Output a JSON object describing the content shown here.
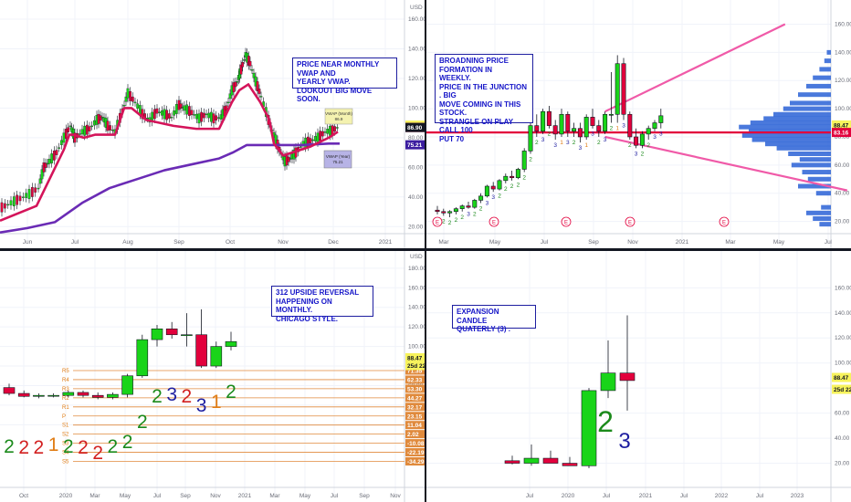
{
  "chart_data": [
    {
      "type": "candlestick",
      "panel": "top-left",
      "timeframe": "daily",
      "annotation": "PRICE NEAR MONTHLY VWAP AND\nYEARLY VWAP.\nLOOKOUT BIG MOVE SOON.",
      "currency_label": "USD",
      "x_ticks": [
        "Jun",
        "Jul",
        "Aug",
        "Sep",
        "Oct",
        "Nov",
        "Dec",
        "2021"
      ],
      "y_ticks": [
        20,
        40,
        60,
        80,
        100,
        120,
        140,
        160
      ],
      "ylim": [
        14,
        168
      ],
      "price_path": [
        [
          0,
          33
        ],
        [
          10,
          36
        ],
        [
          20,
          39
        ],
        [
          30,
          42
        ],
        [
          40,
          46
        ],
        [
          46,
          60
        ],
        [
          52,
          64
        ],
        [
          60,
          70
        ],
        [
          68,
          80
        ],
        [
          75,
          88
        ],
        [
          80,
          80
        ],
        [
          88,
          84
        ],
        [
          96,
          86
        ],
        [
          104,
          92
        ],
        [
          110,
          94
        ],
        [
          116,
          88
        ],
        [
          124,
          84
        ],
        [
          132,
          98
        ],
        [
          138,
          110
        ],
        [
          146,
          104
        ],
        [
          154,
          96
        ],
        [
          162,
          92
        ],
        [
          170,
          98
        ],
        [
          178,
          96
        ],
        [
          186,
          94
        ],
        [
          194,
          102
        ],
        [
          200,
          100
        ],
        [
          208,
          97
        ],
        [
          216,
          93
        ],
        [
          224,
          96
        ],
        [
          232,
          93
        ],
        [
          240,
          94
        ],
        [
          246,
          100
        ],
        [
          252,
          112
        ],
        [
          258,
          118
        ],
        [
          262,
          126
        ],
        [
          267,
          136
        ],
        [
          272,
          130
        ],
        [
          278,
          118
        ],
        [
          284,
          108
        ],
        [
          292,
          92
        ],
        [
          298,
          82
        ],
        [
          304,
          72
        ],
        [
          310,
          64
        ],
        [
          316,
          66
        ],
        [
          322,
          70
        ],
        [
          330,
          76
        ],
        [
          338,
          78
        ],
        [
          346,
          80
        ],
        [
          354,
          84
        ],
        [
          362,
          85
        ],
        [
          370,
          88
        ]
      ],
      "monthly_vwap": [
        [
          0,
          24
        ],
        [
          40,
          34
        ],
        [
          70,
          72
        ],
        [
          76,
          82
        ],
        [
          80,
          82
        ],
        [
          92,
          80
        ],
        [
          104,
          82
        ],
        [
          126,
          82
        ],
        [
          136,
          100
        ],
        [
          144,
          100
        ],
        [
          160,
          92
        ],
        [
          190,
          88
        ],
        [
          215,
          86
        ],
        [
          240,
          86
        ],
        [
          254,
          104
        ],
        [
          262,
          112
        ],
        [
          272,
          116
        ],
        [
          285,
          104
        ],
        [
          295,
          92
        ],
        [
          300,
          76
        ],
        [
          310,
          68
        ],
        [
          320,
          70
        ],
        [
          340,
          74
        ],
        [
          360,
          80
        ],
        [
          370,
          84
        ]
      ],
      "yearly_vwap": [
        [
          0,
          16
        ],
        [
          30,
          19
        ],
        [
          60,
          23
        ],
        [
          90,
          36
        ],
        [
          120,
          46
        ],
        [
          150,
          52
        ],
        [
          180,
          58
        ],
        [
          210,
          62
        ],
        [
          240,
          66
        ],
        [
          255,
          70
        ],
        [
          270,
          75
        ],
        [
          300,
          75
        ],
        [
          330,
          75
        ],
        [
          360,
          76
        ],
        [
          372,
          76
        ]
      ],
      "labels": [
        {
          "text": "VWAP (Month)\n86.9",
          "value": 86.9
        },
        {
          "text": "VWAP (Year)\n75.21",
          "value": 75.21
        }
      ],
      "price_tags": [
        {
          "text": "88.47",
          "value": 88.47,
          "color": "#f7f35c",
          "fg": "#131722"
        },
        {
          "text": "86.90",
          "value": 86.9,
          "color": "#e2003c",
          "fg": "#ffffff"
        },
        {
          "text": "86.90",
          "value": 86.9,
          "color": "#131722",
          "fg": "#ffffff"
        },
        {
          "text": "75.21",
          "value": 75.21,
          "color": "#3c1ea0",
          "fg": "#ffffff"
        }
      ]
    },
    {
      "type": "candlestick",
      "panel": "top-right",
      "timeframe": "weekly",
      "annotation": "BROADNING PRICE FORMATION IN\nWEEKLY.\nPRICE IN THE JUNCTION . BIG\nMOVE COMING IN THIS STOCK.\nSTRANGLE ON PLAY\nCALL 100\nPUT 70",
      "x_ticks": [
        "Mar",
        "May",
        "Jul",
        "Sep",
        "Nov",
        "2021",
        "Mar",
        "May",
        "Jul"
      ],
      "y_ticks": [
        20,
        40,
        60,
        80,
        100,
        120,
        140,
        160
      ],
      "ylim": [
        10,
        172
      ],
      "candles": [
        {
          "o": 28,
          "h": 31,
          "l": 25,
          "c": 27
        },
        {
          "o": 27,
          "h": 29,
          "l": 24,
          "c": 26
        },
        {
          "o": 26,
          "h": 28,
          "l": 23,
          "c": 27
        },
        {
          "o": 27,
          "h": 30,
          "l": 25,
          "c": 29
        },
        {
          "o": 29,
          "h": 32,
          "l": 27,
          "c": 31
        },
        {
          "o": 31,
          "h": 34,
          "l": 29,
          "c": 30
        },
        {
          "o": 30,
          "h": 36,
          "l": 29,
          "c": 35
        },
        {
          "o": 35,
          "h": 40,
          "l": 33,
          "c": 38
        },
        {
          "o": 38,
          "h": 46,
          "l": 37,
          "c": 45
        },
        {
          "o": 45,
          "h": 48,
          "l": 41,
          "c": 43
        },
        {
          "o": 43,
          "h": 50,
          "l": 42,
          "c": 49
        },
        {
          "o": 49,
          "h": 54,
          "l": 47,
          "c": 52
        },
        {
          "o": 52,
          "h": 56,
          "l": 49,
          "c": 51
        },
        {
          "o": 51,
          "h": 58,
          "l": 50,
          "c": 57
        },
        {
          "o": 57,
          "h": 72,
          "l": 55,
          "c": 70
        },
        {
          "o": 70,
          "h": 92,
          "l": 68,
          "c": 88
        },
        {
          "o": 88,
          "h": 96,
          "l": 80,
          "c": 84
        },
        {
          "o": 84,
          "h": 100,
          "l": 82,
          "c": 98
        },
        {
          "o": 98,
          "h": 102,
          "l": 86,
          "c": 88
        },
        {
          "o": 88,
          "h": 92,
          "l": 78,
          "c": 82
        },
        {
          "o": 82,
          "h": 100,
          "l": 80,
          "c": 96
        },
        {
          "o": 96,
          "h": 98,
          "l": 80,
          "c": 84
        },
        {
          "o": 84,
          "h": 90,
          "l": 80,
          "c": 86
        },
        {
          "o": 86,
          "h": 90,
          "l": 76,
          "c": 80
        },
        {
          "o": 80,
          "h": 96,
          "l": 78,
          "c": 94
        },
        {
          "o": 94,
          "h": 100,
          "l": 86,
          "c": 88
        },
        {
          "o": 88,
          "h": 92,
          "l": 80,
          "c": 84
        },
        {
          "o": 84,
          "h": 98,
          "l": 82,
          "c": 96
        },
        {
          "o": 96,
          "h": 126,
          "l": 90,
          "c": 96
        },
        {
          "o": 96,
          "h": 138,
          "l": 90,
          "c": 132
        },
        {
          "o": 132,
          "h": 136,
          "l": 92,
          "c": 96
        },
        {
          "o": 96,
          "h": 98,
          "l": 78,
          "c": 80
        },
        {
          "o": 80,
          "h": 86,
          "l": 72,
          "c": 74
        },
        {
          "o": 74,
          "h": 84,
          "l": 72,
          "c": 82
        },
        {
          "o": 82,
          "h": 88,
          "l": 78,
          "c": 86
        },
        {
          "o": 86,
          "h": 92,
          "l": 84,
          "c": 90
        },
        {
          "o": 90,
          "h": 100,
          "l": 86,
          "c": 95
        }
      ],
      "candle_labels": [
        "2",
        "2",
        "2",
        "2",
        "2",
        "3",
        "2",
        "2",
        "3",
        "3",
        "2",
        "2",
        "2",
        "2",
        "2",
        "2",
        "2",
        "3",
        "2",
        "3",
        "1",
        "3",
        "2",
        "3",
        "1",
        "3",
        "2",
        "3",
        "2",
        "1",
        "3",
        "2",
        "3",
        "2",
        "2",
        "3",
        "3"
      ],
      "trendlines": [
        {
          "name": "upper",
          "from": [
            27,
            98
          ],
          "to": [
            56,
            160
          ]
        },
        {
          "name": "lower",
          "from": [
            27,
            80
          ],
          "to": [
            66,
            42
          ]
        }
      ],
      "hline": 83.16,
      "earnings_markers": [
        "E",
        "E",
        "E",
        "E",
        "E"
      ],
      "volume_profile_note": "horizontal volume profile on right",
      "price_tags": [
        {
          "text": "88.47",
          "value": 88.47,
          "color": "#f7f35c",
          "fg": "#131722"
        },
        {
          "text": "83.16",
          "value": 83.16,
          "color": "#e2003c",
          "fg": "#ffffff"
        }
      ]
    },
    {
      "type": "candlestick",
      "panel": "bottom-left",
      "timeframe": "monthly",
      "annotation": "312 UPSIDE REVERSAL\nHAPPENING ON MONTHLY.\nCHICAGO STYLE.",
      "currency_label": "USD",
      "x_ticks": [
        "Oct",
        "2020",
        "Mar",
        "May",
        "Jul",
        "Sep",
        "Nov",
        "2021",
        "Mar",
        "May",
        "Jul",
        "Sep",
        "Nov"
      ],
      "y_ticks": [
        20,
        40,
        60,
        80,
        100,
        120,
        140,
        160,
        180
      ],
      "ylim": [
        -45,
        192
      ],
      "candles": [
        {
          "o": 58,
          "h": 62,
          "l": 50,
          "c": 52
        },
        {
          "o": 52,
          "h": 55,
          "l": 48,
          "c": 49
        },
        {
          "o": 49,
          "h": 52,
          "l": 47,
          "c": 50
        },
        {
          "o": 50,
          "h": 52,
          "l": 48,
          "c": 50
        },
        {
          "o": 50,
          "h": 55,
          "l": 48,
          "c": 53
        },
        {
          "o": 53,
          "h": 55,
          "l": 48,
          "c": 50
        },
        {
          "o": 50,
          "h": 53,
          "l": 46,
          "c": 48
        },
        {
          "o": 48,
          "h": 53,
          "l": 46,
          "c": 51
        },
        {
          "o": 51,
          "h": 72,
          "l": 48,
          "c": 70
        },
        {
          "o": 70,
          "h": 112,
          "l": 68,
          "c": 107
        },
        {
          "o": 107,
          "h": 122,
          "l": 100,
          "c": 118
        },
        {
          "o": 118,
          "h": 125,
          "l": 108,
          "c": 112
        },
        {
          "o": 112,
          "h": 134,
          "l": 100,
          "c": 112
        },
        {
          "o": 112,
          "h": 138,
          "l": 78,
          "c": 80
        },
        {
          "o": 80,
          "h": 105,
          "l": 78,
          "c": 100
        },
        {
          "o": 100,
          "h": 115,
          "l": 96,
          "c": 105
        }
      ],
      "candle_labels": [
        {
          "text": "2",
          "color": "#1b8a1b"
        },
        {
          "text": "2",
          "color": "#d22020"
        },
        {
          "text": "2",
          "color": "#d22020"
        },
        {
          "text": "1",
          "color": "#e07c14"
        },
        {
          "text": "2",
          "color": "#1b8a1b"
        },
        {
          "text": "2",
          "color": "#d22020"
        },
        {
          "text": "2",
          "color": "#d22020"
        },
        {
          "text": "2",
          "color": "#1b8a1b"
        },
        {
          "text": "2",
          "color": "#1b8a1b"
        },
        {
          "text": "2",
          "color": "#1b8a1b"
        },
        {
          "text": "2",
          "color": "#1b8a1b"
        },
        {
          "text": "3",
          "color": "#1e1ea0"
        },
        {
          "text": "2",
          "color": "#d22020"
        },
        {
          "text": "3",
          "color": "#1e1ea0"
        },
        {
          "text": "1",
          "color": "#e07c14"
        },
        {
          "text": "2",
          "color": "#1b8a1b"
        }
      ],
      "pivot_levels": [
        {
          "label": "R5",
          "tag": "71.35",
          "value": 71.35
        },
        {
          "label": "R4",
          "tag": "62.33",
          "value": 62.33
        },
        {
          "label": "R3",
          "tag": "53.30",
          "value": 53.3
        },
        {
          "label": "R2",
          "tag": "44.27",
          "value": 44.27
        },
        {
          "label": "R1",
          "tag": "32.17",
          "value": 32.17
        },
        {
          "label": "P",
          "tag": "23.15",
          "value": 23.15
        },
        {
          "label": "S1",
          "tag": "11.04",
          "value": 11.04
        },
        {
          "label": "S2",
          "tag": "2.02",
          "value": 2.02
        },
        {
          "label": "S3",
          "tag": "-10.08",
          "value": -10.08
        },
        {
          "label": "S4",
          "tag": "-22.19",
          "value": -22.19
        },
        {
          "label": "S5",
          "tag": "-34.29",
          "value": -34.29
        }
      ],
      "price_tags": [
        {
          "text": "88.47",
          "value": 88.47,
          "color": "#f7f35c",
          "fg": "#131722"
        },
        {
          "text": "25d 22h",
          "value": 80.5,
          "color": "#f7f35c",
          "fg": "#131722"
        }
      ]
    },
    {
      "type": "candlestick",
      "panel": "bottom-right",
      "timeframe": "quarterly",
      "annotation": "EXPANSION CANDLE\nQUATERLY (3) .",
      "x_ticks": [
        "Jul",
        "2020",
        "Jul",
        "2021",
        "Jul",
        "2022",
        "Jul",
        "2023"
      ],
      "y_ticks": [
        20,
        40,
        60,
        80,
        100,
        120,
        140,
        160
      ],
      "ylim": [
        0,
        185
      ],
      "candles": [
        {
          "o": 22,
          "h": 26,
          "l": 19,
          "c": 20
        },
        {
          "o": 20,
          "h": 35,
          "l": 18,
          "c": 24
        },
        {
          "o": 24,
          "h": 30,
          "l": 20,
          "c": 20
        },
        {
          "o": 20,
          "h": 25,
          "l": 18,
          "c": 18
        },
        {
          "o": 18,
          "h": 80,
          "l": 16,
          "c": 78
        },
        {
          "o": 78,
          "h": 118,
          "l": 72,
          "c": 92
        },
        {
          "o": 92,
          "h": 138,
          "l": 62,
          "c": 86
        }
      ],
      "candle_labels": [
        {
          "text": "2",
          "color": "#1b8a1b"
        },
        {
          "text": "3",
          "color": "#1e1ea0"
        }
      ],
      "price_tags": [
        {
          "text": "88.47",
          "value": 88.47,
          "color": "#f7f35c",
          "fg": "#131722"
        },
        {
          "text": "25d 22h",
          "value": 79,
          "color": "#f7f35c",
          "fg": "#131722"
        }
      ]
    }
  ]
}
